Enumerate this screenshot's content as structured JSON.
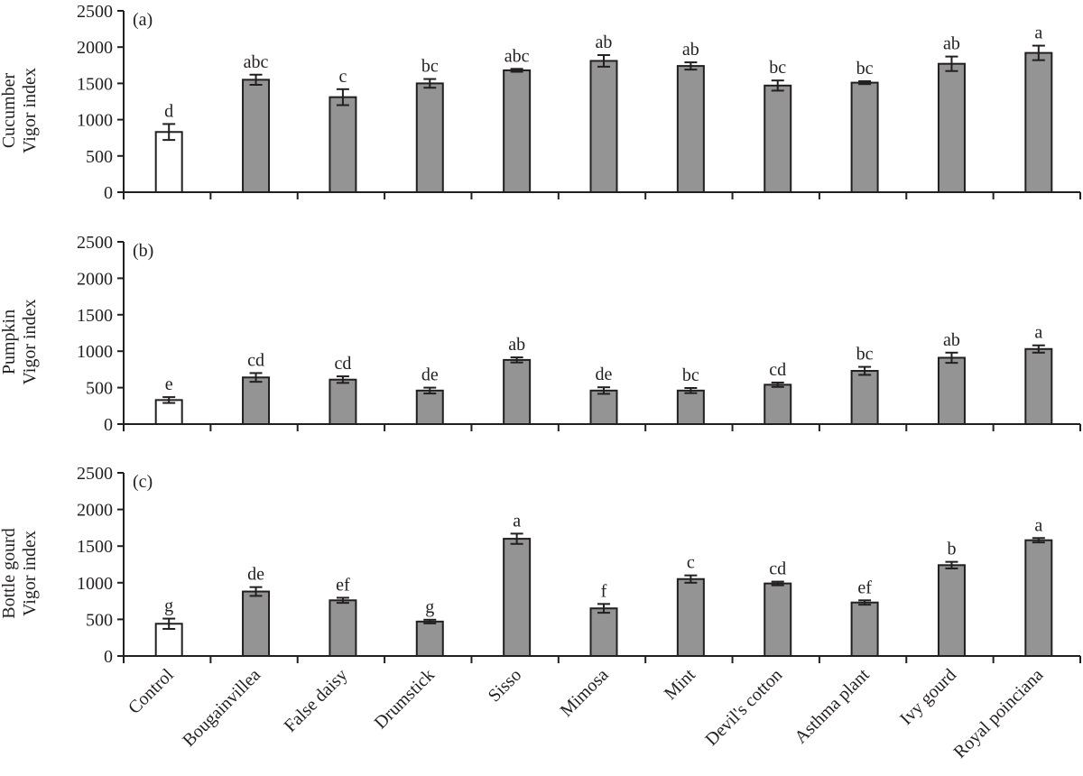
{
  "chart_data": [
    {
      "type": "bar",
      "panel_label": "(a)",
      "ylabel": [
        "Cucumber",
        "Vigor index"
      ],
      "ylim": [
        0,
        2500
      ],
      "yticks": [
        0,
        500,
        1000,
        1500,
        2000,
        2500
      ],
      "categories": [
        "Control",
        "Bougainvillea",
        "False daisy",
        "Drumstick",
        "Sisso",
        "Mimosa",
        "Mint",
        "Devil's cotton",
        "Asthma plant",
        "Ivy gourd",
        "Royal poinciana"
      ],
      "values": [
        830,
        1550,
        1310,
        1500,
        1680,
        1810,
        1740,
        1470,
        1510,
        1770,
        1920
      ],
      "errors": [
        110,
        70,
        110,
        60,
        20,
        80,
        50,
        70,
        20,
        100,
        100
      ],
      "letters": [
        "d",
        "abc",
        "c",
        "bc",
        "abc",
        "ab",
        "ab",
        "bc",
        "bc",
        "ab",
        "a"
      ]
    },
    {
      "type": "bar",
      "panel_label": "(b)",
      "ylabel": [
        "Pumpkin",
        "Vigor index"
      ],
      "ylim": [
        0,
        2500
      ],
      "yticks": [
        0,
        500,
        1000,
        1500,
        2000,
        2500
      ],
      "categories": [
        "Control",
        "Bougainvillea",
        "False daisy",
        "Drumstick",
        "Sisso",
        "Mimosa",
        "Mint",
        "Devil's cotton",
        "Asthma plant",
        "Ivy gourd",
        "Royal poinciana"
      ],
      "values": [
        330,
        640,
        610,
        460,
        880,
        460,
        460,
        540,
        730,
        910,
        1030
      ],
      "errors": [
        40,
        60,
        45,
        40,
        35,
        45,
        35,
        30,
        55,
        70,
        50
      ],
      "letters": [
        "e",
        "cd",
        "cd",
        "de",
        "ab",
        "de",
        "bc",
        "cd",
        "bc",
        "ab",
        "a"
      ]
    },
    {
      "type": "bar",
      "panel_label": "(c)",
      "ylabel": [
        "Bottle gourd",
        "Vigor index"
      ],
      "ylim": [
        0,
        2500
      ],
      "yticks": [
        0,
        500,
        1000,
        1500,
        2000,
        2500
      ],
      "categories": [
        "Control",
        "Bougainvillea",
        "False daisy",
        "Drumstick",
        "Sisso",
        "Mimosa",
        "Mint",
        "Devil's cotton",
        "Asthma plant",
        "Ivy gourd",
        "Royal poinciana"
      ],
      "values": [
        440,
        880,
        760,
        470,
        1600,
        650,
        1050,
        990,
        730,
        1240,
        1580
      ],
      "errors": [
        70,
        60,
        35,
        25,
        70,
        60,
        50,
        25,
        30,
        45,
        30
      ],
      "letters": [
        "g",
        "de",
        "ef",
        "g",
        "a",
        "f",
        "c",
        "cd",
        "ef",
        "b",
        "a"
      ]
    }
  ],
  "colors": {
    "control_fill": "#ffffff",
    "treatment_fill": "#949494",
    "stroke": "#231f20"
  }
}
